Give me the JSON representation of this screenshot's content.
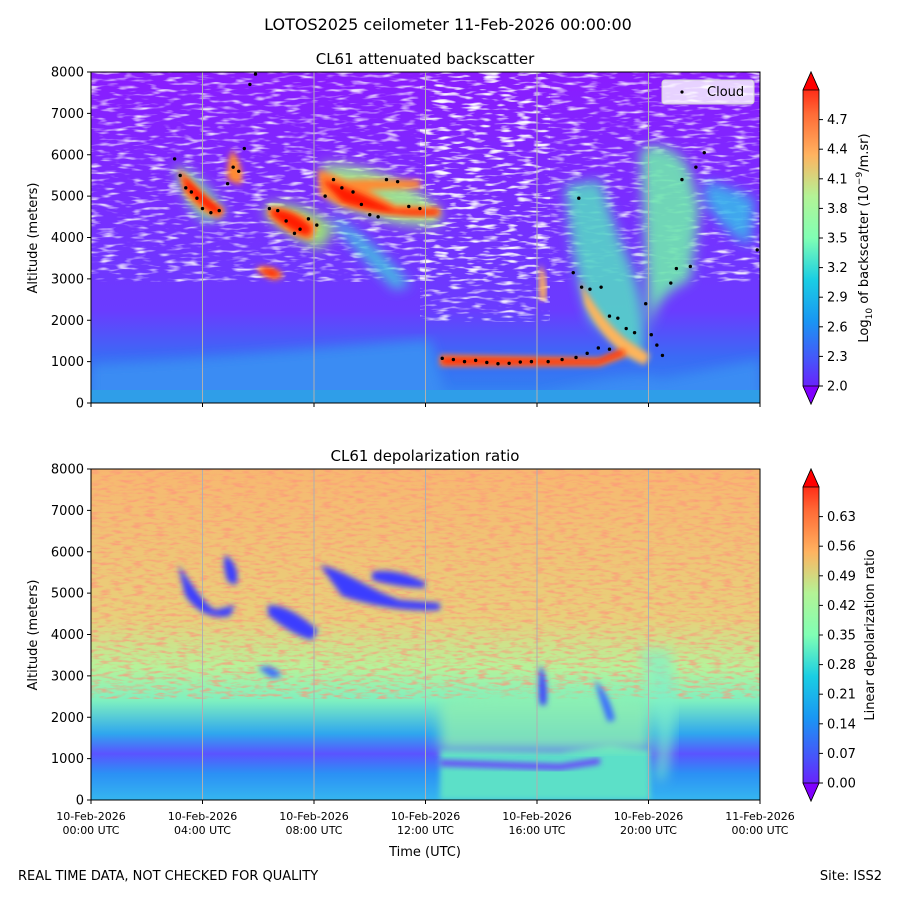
{
  "suptitle": "LOTOS2025 ceilometer 11-Feb-2026 00:00:00",
  "footer": {
    "left": "REAL TIME DATA, NOT CHECKED FOR QUALITY",
    "right": "Site: ISS2"
  },
  "colors": {
    "background_low_layer": "#2f86f0",
    "background_mid": "#7f3cff",
    "cloud_core": "#ff1a00",
    "cloud_marker": "#000000",
    "grid": "#b0b0b0"
  },
  "chart_data": [
    {
      "type": "heatmap",
      "title": "CL61 attenuated backscatter",
      "xlabel": "",
      "ylabel": "Altitude (meters)",
      "xlim": [
        "10-Feb-2026 00:00 UTC",
        "11-Feb-2026 00:00 UTC"
      ],
      "ylim": [
        0,
        8000
      ],
      "xticks": [
        "10-Feb-2026\n00:00 UTC",
        "10-Feb-2026\n04:00 UTC",
        "10-Feb-2026\n08:00 UTC",
        "10-Feb-2026\n12:00 UTC",
        "10-Feb-2026\n16:00 UTC",
        "10-Feb-2026\n20:00 UTC",
        "11-Feb-2026\n00:00 UTC"
      ],
      "xtick_hours": [
        0,
        4,
        8,
        12,
        16,
        20,
        24
      ],
      "yticks": [
        0,
        1000,
        2000,
        3000,
        4000,
        5000,
        6000,
        7000,
        8000
      ],
      "grid": "vertical lines at time ticks",
      "colormap": "rainbow",
      "colorbar": {
        "label": "Log10 of backscatter (10^-9/m.sr)",
        "label_main": "Log",
        "label_sub": "10",
        "label_rest": " of backscatter (10",
        "label_sup": "−9",
        "label_end": "/m.sr)",
        "range": [
          2.0,
          5.0
        ],
        "ticks": [
          "2.0",
          "2.3",
          "2.6",
          "2.9",
          "3.2",
          "3.5",
          "3.8",
          "4.1",
          "4.4",
          "4.7"
        ],
        "tick_values": [
          2.0,
          2.3,
          2.6,
          2.9,
          3.2,
          3.5,
          3.8,
          4.1,
          4.4,
          4.7
        ],
        "extend": "both"
      },
      "legend": {
        "position": "top-right",
        "entries": [
          "Cloud"
        ]
      },
      "cloud_layers": [
        {
          "name": "Cloud",
          "points": [
            {
              "t": 3.0,
              "alt": 5900
            },
            {
              "t": 3.2,
              "alt": 5500
            },
            {
              "t": 3.4,
              "alt": 5200
            },
            {
              "t": 3.6,
              "alt": 5100
            },
            {
              "t": 3.8,
              "alt": 4950
            },
            {
              "t": 4.0,
              "alt": 4700
            },
            {
              "t": 4.3,
              "alt": 4600
            },
            {
              "t": 4.6,
              "alt": 4650
            },
            {
              "t": 4.9,
              "alt": 5300
            },
            {
              "t": 5.1,
              "alt": 5700
            },
            {
              "t": 5.3,
              "alt": 5600
            },
            {
              "t": 5.5,
              "alt": 6150
            },
            {
              "t": 5.7,
              "alt": 7700
            },
            {
              "t": 5.9,
              "alt": 7950
            },
            {
              "t": 6.4,
              "alt": 4700
            },
            {
              "t": 6.7,
              "alt": 4650
            },
            {
              "t": 7.0,
              "alt": 4400
            },
            {
              "t": 7.3,
              "alt": 4100
            },
            {
              "t": 7.5,
              "alt": 4200
            },
            {
              "t": 7.8,
              "alt": 4450
            },
            {
              "t": 8.1,
              "alt": 4300
            },
            {
              "t": 8.4,
              "alt": 5000
            },
            {
              "t": 8.7,
              "alt": 5400
            },
            {
              "t": 9.0,
              "alt": 5200
            },
            {
              "t": 9.4,
              "alt": 5100
            },
            {
              "t": 9.7,
              "alt": 4800
            },
            {
              "t": 10.0,
              "alt": 4550
            },
            {
              "t": 10.3,
              "alt": 4500
            },
            {
              "t": 10.6,
              "alt": 5400
            },
            {
              "t": 11.0,
              "alt": 5350
            },
            {
              "t": 11.4,
              "alt": 4750
            },
            {
              "t": 11.8,
              "alt": 4700
            },
            {
              "t": 12.6,
              "alt": 1080
            },
            {
              "t": 13.0,
              "alt": 1050
            },
            {
              "t": 13.4,
              "alt": 1000
            },
            {
              "t": 13.8,
              "alt": 1030
            },
            {
              "t": 14.2,
              "alt": 980
            },
            {
              "t": 14.6,
              "alt": 950
            },
            {
              "t": 15.0,
              "alt": 960
            },
            {
              "t": 15.4,
              "alt": 990
            },
            {
              "t": 15.8,
              "alt": 1000
            },
            {
              "t": 16.4,
              "alt": 1000
            },
            {
              "t": 16.9,
              "alt": 1050
            },
            {
              "t": 17.4,
              "alt": 1100
            },
            {
              "t": 17.8,
              "alt": 1200
            },
            {
              "t": 18.2,
              "alt": 1330
            },
            {
              "t": 18.6,
              "alt": 1300
            },
            {
              "t": 17.3,
              "alt": 3150
            },
            {
              "t": 17.6,
              "alt": 2800
            },
            {
              "t": 17.9,
              "alt": 2750
            },
            {
              "t": 18.3,
              "alt": 2800
            },
            {
              "t": 18.6,
              "alt": 2100
            },
            {
              "t": 18.9,
              "alt": 2050
            },
            {
              "t": 19.2,
              "alt": 1800
            },
            {
              "t": 19.5,
              "alt": 1700
            },
            {
              "t": 19.9,
              "alt": 2400
            },
            {
              "t": 20.1,
              "alt": 1650
            },
            {
              "t": 20.3,
              "alt": 1400
            },
            {
              "t": 20.5,
              "alt": 1150
            },
            {
              "t": 20.8,
              "alt": 2900
            },
            {
              "t": 21.0,
              "alt": 3250
            },
            {
              "t": 21.2,
              "alt": 5400
            },
            {
              "t": 21.5,
              "alt": 3300
            },
            {
              "t": 21.7,
              "alt": 5700
            },
            {
              "t": 22.0,
              "alt": 6050
            },
            {
              "t": 23.9,
              "alt": 3700
            },
            {
              "t": 17.5,
              "alt": 4950
            }
          ]
        }
      ]
    },
    {
      "type": "heatmap",
      "title": "CL61 depolarization ratio",
      "xlabel": "Time (UTC)",
      "ylabel": "Altitude (meters)",
      "xlim": [
        "10-Feb-2026 00:00 UTC",
        "11-Feb-2026 00:00 UTC"
      ],
      "ylim": [
        0,
        8000
      ],
      "xticks": [
        "10-Feb-2026\n00:00 UTC",
        "10-Feb-2026\n04:00 UTC",
        "10-Feb-2026\n08:00 UTC",
        "10-Feb-2026\n12:00 UTC",
        "10-Feb-2026\n16:00 UTC",
        "10-Feb-2026\n20:00 UTC",
        "11-Feb-2026\n00:00 UTC"
      ],
      "xtick_hours": [
        0,
        4,
        8,
        12,
        16,
        20,
        24
      ],
      "yticks": [
        0,
        1000,
        2000,
        3000,
        4000,
        5000,
        6000,
        7000,
        8000
      ],
      "grid": "vertical lines at time ticks",
      "colormap": "rainbow",
      "colorbar": {
        "label": "Linear depolarization ratio",
        "range": [
          0.0,
          0.7
        ],
        "ticks": [
          "0.00",
          "0.07",
          "0.14",
          "0.21",
          "0.28",
          "0.35",
          "0.42",
          "0.49",
          "0.56",
          "0.63"
        ],
        "tick_values": [
          0.0,
          0.07,
          0.14,
          0.21,
          0.28,
          0.35,
          0.42,
          0.49,
          0.56,
          0.63
        ],
        "extend": "both"
      }
    }
  ]
}
